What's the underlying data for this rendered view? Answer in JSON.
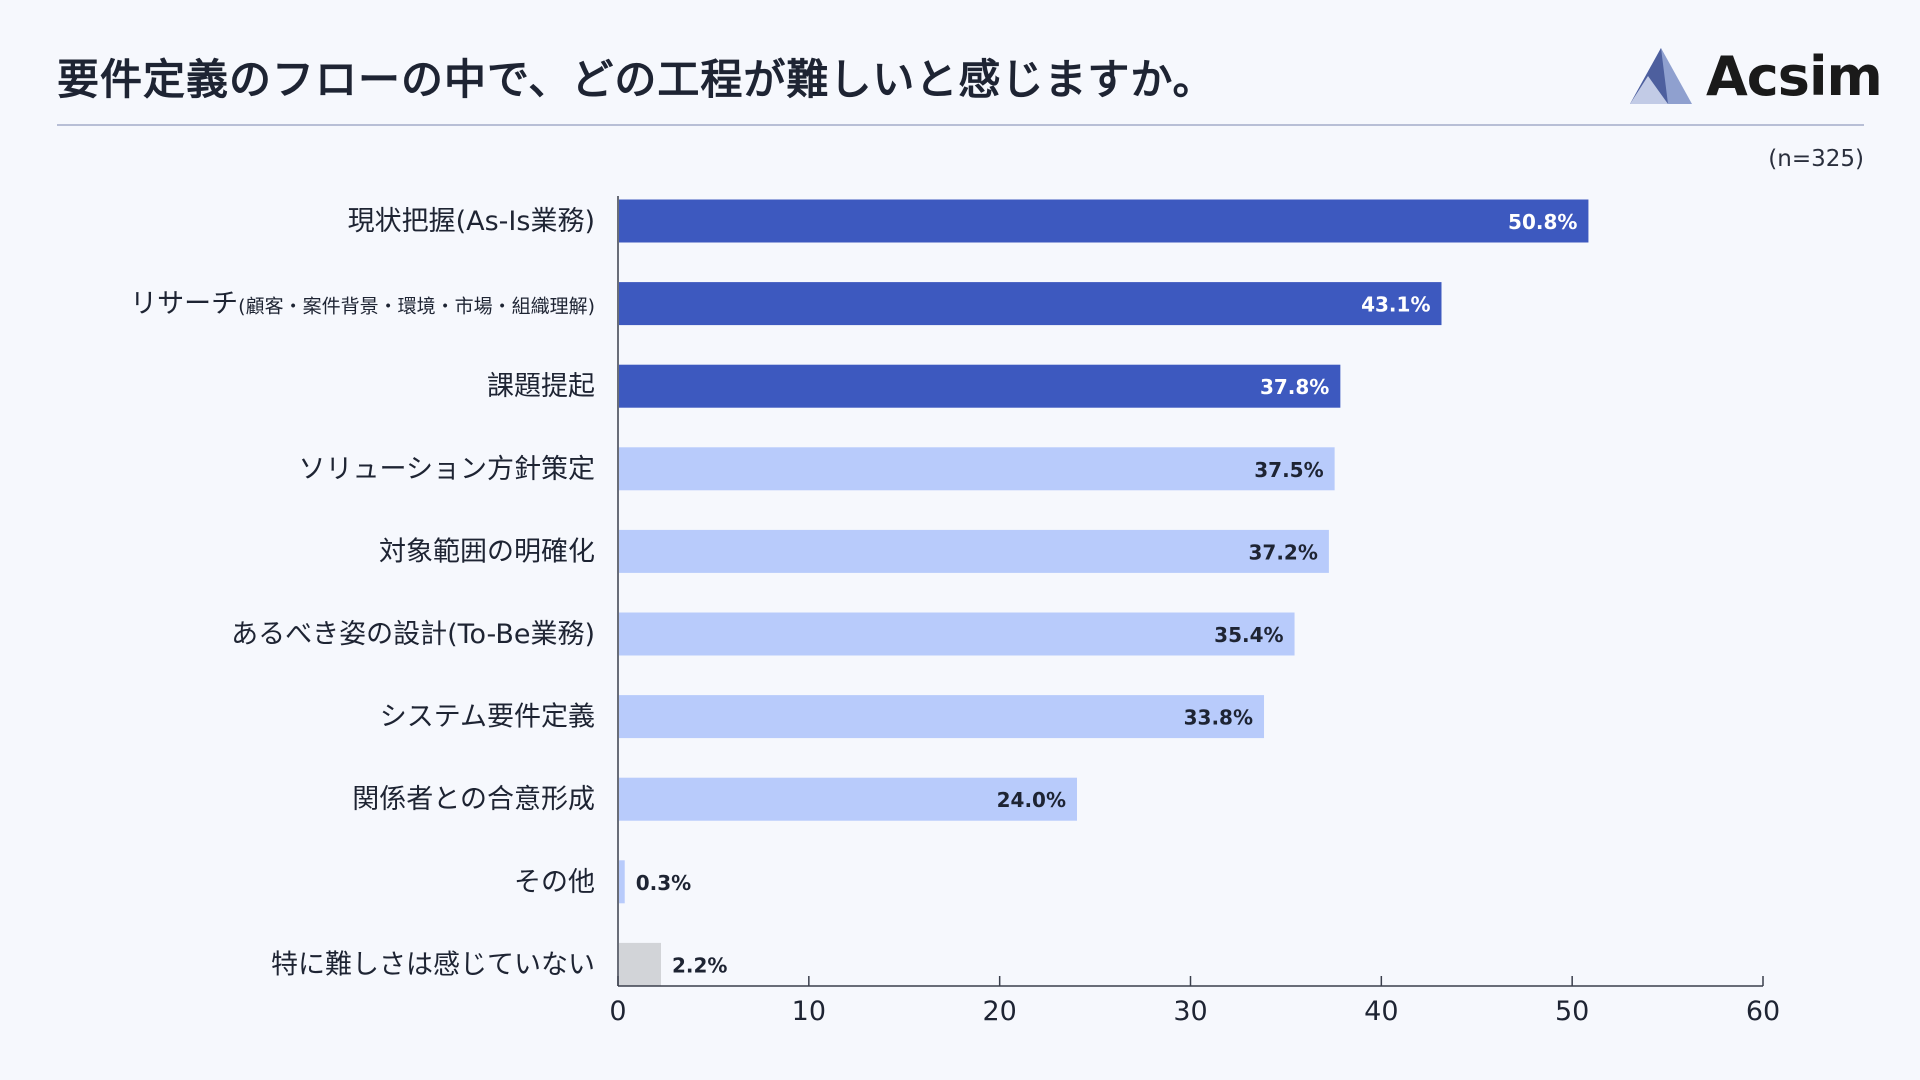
{
  "header": {
    "title": "要件定義のフローの中で、どの工程が難しいと感じますか。",
    "logo_text": "Acsim",
    "logo_icon": "triangle-logo-icon"
  },
  "sample_size": "(n=325)",
  "colors": {
    "dark": "#3d59bf",
    "light": "#b8cbfb",
    "gray": "#d2d4d8",
    "value_light_text": "#ffffff",
    "value_dark_text": "#1e2433"
  },
  "chart_data": {
    "type": "bar",
    "orientation": "horizontal",
    "title": "要件定義のフローの中で、どの工程が難しいと感じますか。",
    "xlabel": "",
    "ylabel": "",
    "xlim": [
      0,
      60
    ],
    "x_ticks": [
      0,
      10,
      20,
      30,
      40,
      50,
      60
    ],
    "grid": false,
    "categories": [
      {
        "main": "現状把握(As-Is業務)",
        "sub": ""
      },
      {
        "main": "リサーチ",
        "sub": "(顧客・案件背景・環境・市場・組織理解)"
      },
      {
        "main": "課題提起",
        "sub": ""
      },
      {
        "main": "ソリューション方針策定",
        "sub": ""
      },
      {
        "main": "対象範囲の明確化",
        "sub": ""
      },
      {
        "main": "あるべき姿の設計(To-Be業務)",
        "sub": ""
      },
      {
        "main": "システム要件定義",
        "sub": ""
      },
      {
        "main": "関係者との合意形成",
        "sub": ""
      },
      {
        "main": "その他",
        "sub": ""
      },
      {
        "main": "特に難しさは感じていない",
        "sub": ""
      }
    ],
    "values": [
      50.8,
      43.1,
      37.8,
      37.5,
      37.2,
      35.4,
      33.8,
      24.0,
      0.3,
      2.2
    ],
    "value_labels": [
      "50.8%",
      "43.1%",
      "37.8%",
      "37.5%",
      "37.2%",
      "35.4%",
      "33.8%",
      "24.0%",
      "0.3%",
      "2.2%"
    ],
    "bar_styles": [
      "dark",
      "dark",
      "dark",
      "light",
      "light",
      "light",
      "light",
      "light",
      "light",
      "gray"
    ]
  }
}
